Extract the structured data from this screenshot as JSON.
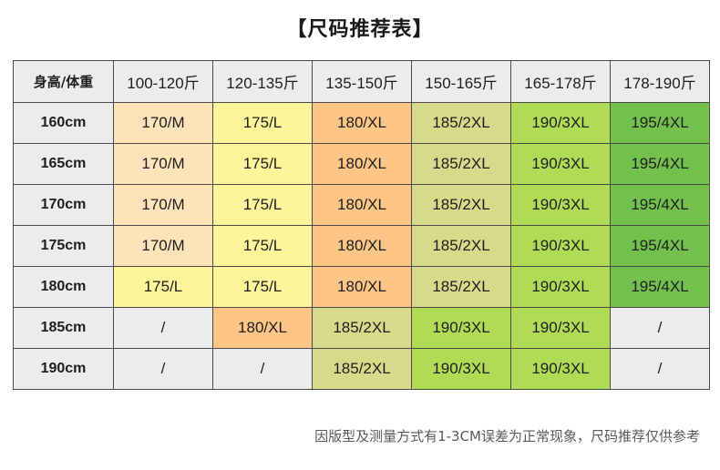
{
  "title": "【尺码推荐表】",
  "table": {
    "corner_header": "身高/体重",
    "weight_headers": [
      "100-120斤",
      "120-135斤",
      "135-150斤",
      "150-165斤",
      "165-178斤",
      "178-190斤"
    ],
    "rows": [
      {
        "height": "160cm",
        "cells": [
          "170/M",
          "175/L",
          "180/XL",
          "185/2XL",
          "190/3XL",
          "195/4XL"
        ]
      },
      {
        "height": "165cm",
        "cells": [
          "170/M",
          "175/L",
          "180/XL",
          "185/2XL",
          "190/3XL",
          "195/4XL"
        ]
      },
      {
        "height": "170cm",
        "cells": [
          "170/M",
          "175/L",
          "180/XL",
          "185/2XL",
          "190/3XL",
          "195/4XL"
        ]
      },
      {
        "height": "175cm",
        "cells": [
          "170/M",
          "175/L",
          "180/XL",
          "185/2XL",
          "190/3XL",
          "195/4XL"
        ]
      },
      {
        "height": "180cm",
        "cells": [
          "175/L",
          "175/L",
          "180/XL",
          "185/2XL",
          "190/3XL",
          "195/4XL"
        ]
      },
      {
        "height": "185cm",
        "cells": [
          "/",
          "180/XL",
          "185/2XL",
          "190/3XL",
          "190/3XL",
          "/"
        ]
      },
      {
        "height": "190cm",
        "cells": [
          "/",
          "/",
          "185/2XL",
          "190/3XL",
          "190/3XL",
          "/"
        ]
      }
    ]
  },
  "size_colors": {
    "M": "#fde3b7",
    "L": "#fdf59a",
    "XL": "#fcc586",
    "2XL": "#d9d98a",
    "3XL": "#b0dc55",
    "4XL": "#73c04c",
    "none": "#ececee"
  },
  "note": "因版型及测量方式有1-3CM误差为正常现象，尺码推荐仅供参考"
}
